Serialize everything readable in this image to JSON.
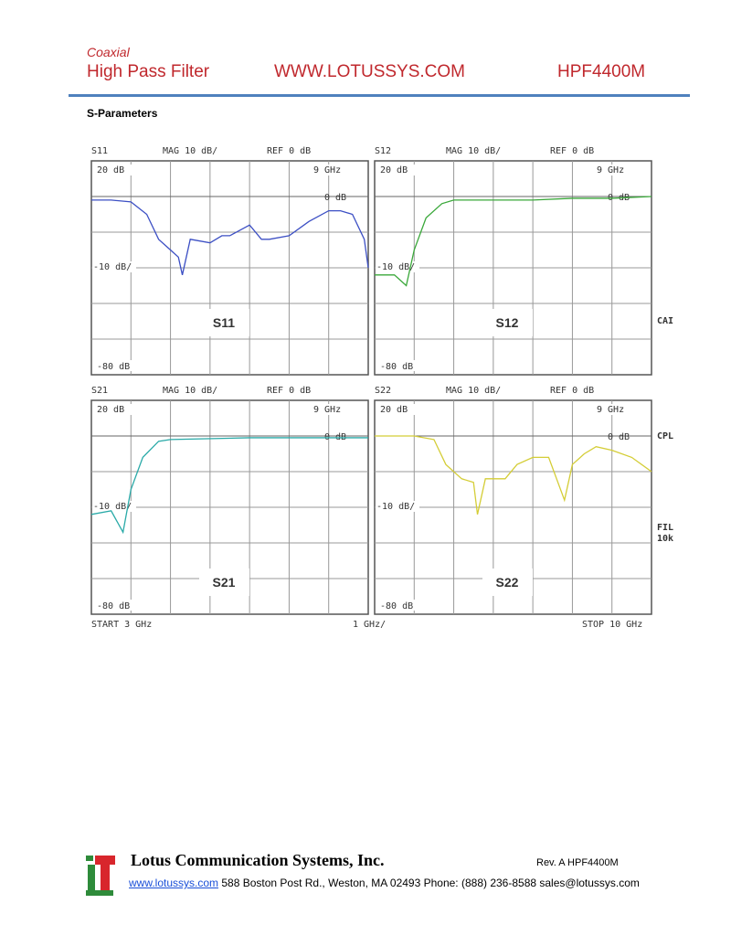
{
  "header": {
    "category": "Coaxial",
    "title": "High Pass Filter",
    "website": "WWW.LOTUSSYS.COM",
    "part": "HPF4400M"
  },
  "section_title": "S-Parameters",
  "instrument": {
    "mag": "MAG 10 dB/",
    "ref": "REF 0 dB",
    "top": "20 dB",
    "marker_freq": "9 GHz",
    "marker_level": "0 dB",
    "mid": "-10 dB/",
    "bottom": "-80 dB",
    "start": "START  3 GHz",
    "span": "1 GHz/",
    "stop": "STOP 10 GHz",
    "freq_range": [
      3,
      10
    ],
    "side_labels": [
      "CAI",
      "CPL",
      "FIL",
      "10k"
    ]
  },
  "plots": [
    {
      "name": "S11",
      "label": "S11",
      "color": "#3c4fc4",
      "freq": [
        3.0,
        3.5,
        4.0,
        4.4,
        4.7,
        5.0,
        5.2,
        5.3,
        5.5,
        6.0,
        6.3,
        6.5,
        7.0,
        7.3,
        7.5,
        8.0,
        8.5,
        9.0,
        9.3,
        9.6,
        9.9,
        10.0
      ],
      "db": [
        -1,
        -1,
        -1.5,
        -5,
        -12,
        -15,
        -17,
        -22,
        -12,
        -13,
        -11,
        -11,
        -8,
        -12,
        -12,
        -11,
        -7,
        -4,
        -4,
        -5,
        -12,
        -20
      ]
    },
    {
      "name": "S12",
      "label": "S12",
      "color": "#3aa83a",
      "freq": [
        3.0,
        3.5,
        3.8,
        4.0,
        4.3,
        4.7,
        5.0,
        6.0,
        7.0,
        8.0,
        9.0,
        10.0
      ],
      "db": [
        -22,
        -22,
        -25,
        -15,
        -6,
        -2,
        -1,
        -1,
        -1,
        -0.5,
        -0.5,
        0
      ]
    },
    {
      "name": "S21",
      "label": "S21",
      "color": "#2aaaa8",
      "freq": [
        3.0,
        3.5,
        3.8,
        4.0,
        4.3,
        4.7,
        5.0,
        7.0,
        10.0
      ],
      "db": [
        -22,
        -21,
        -27,
        -15,
        -6,
        -1.5,
        -1,
        -0.5,
        -0.5
      ]
    },
    {
      "name": "S22",
      "label": "S22",
      "color": "#d4cd36",
      "freq": [
        3.0,
        4.0,
        4.5,
        4.8,
        5.2,
        5.5,
        5.6,
        5.8,
        6.3,
        6.6,
        7.0,
        7.4,
        7.6,
        7.8,
        8.0,
        8.3,
        8.6,
        9.0,
        9.5,
        10.0
      ],
      "db": [
        0,
        0,
        -1,
        -8,
        -12,
        -13,
        -22,
        -12,
        -12,
        -8,
        -6,
        -6,
        -12,
        -18,
        -8,
        -5,
        -3,
        -4,
        -6,
        -10
      ]
    }
  ],
  "footer": {
    "company": "Lotus Communication Systems, Inc.",
    "rev": "Rev. A   HPF4400M",
    "link": "www.lotussys.com",
    "contact": " 588 Boston Post Rd., Weston, MA 02493 Phone: (888) 236-8588 sales@lotussys.com"
  }
}
